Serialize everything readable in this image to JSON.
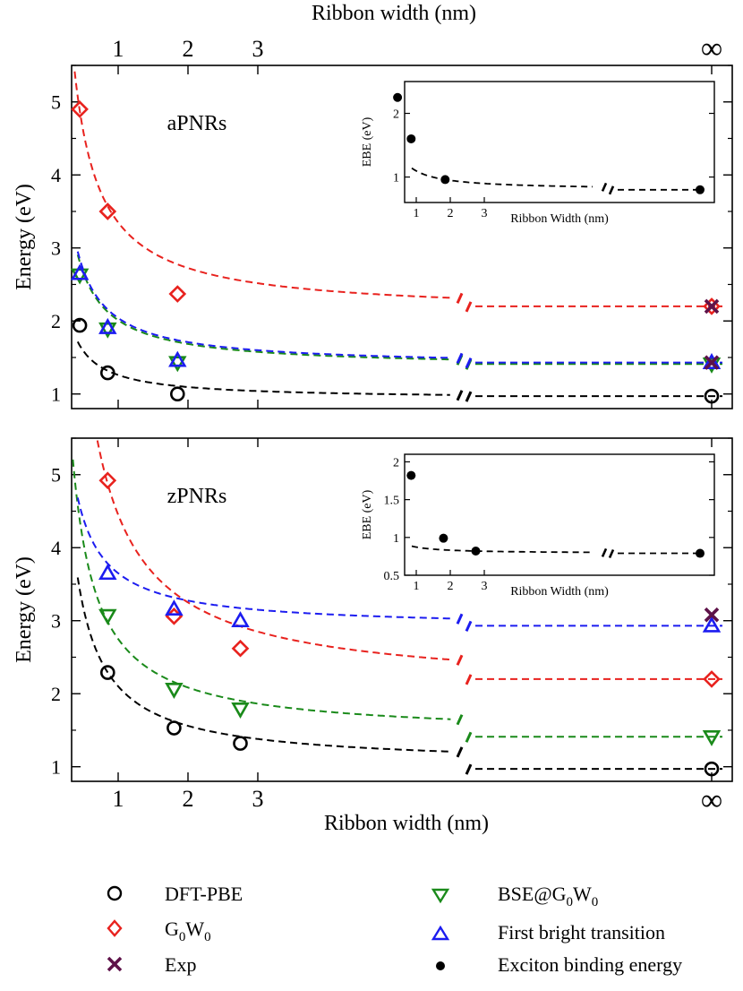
{
  "top_axis_title": "Ribbon width (nm)",
  "bottom_axis_title": "Ribbon width (nm)",
  "x_tick_labels": [
    "1",
    "2",
    "3"
  ],
  "infinity_label": "∞",
  "colors": {
    "dft": "#000000",
    "g0w0": "#e8221e",
    "bse": "#1a8a1a",
    "bright": "#1c1cf0",
    "exp": "#5e1249"
  },
  "legend": {
    "dft": "DFT-PBE",
    "g0w0": "G",
    "g0w0_sub1": "0",
    "g0w0_after": "W",
    "g0w0_sub2": "0",
    "exp": "Exp",
    "bse": "BSE@G",
    "bse_sub1": "0",
    "bse_after": "W",
    "bse_sub2": "0",
    "bright": "First bright transition",
    "ebe": "Exciton binding energy"
  },
  "chart_data": [
    {
      "type": "scatter",
      "panel": "aPNRs",
      "label": "aPNRs",
      "ylabel": "Energy (eV)",
      "xlabel": "Ribbon width (nm)",
      "ylim": [
        0.8,
        5.5
      ],
      "yticks": [
        "1",
        "2",
        "3",
        "4",
        "5"
      ],
      "xticks": [
        "1",
        "2",
        "3",
        "∞"
      ],
      "series": [
        {
          "name": "DFT-PBE",
          "marker": "circle",
          "x": [
            0.45,
            0.85,
            1.85
          ],
          "y": [
            1.94,
            1.29,
            1.0
          ],
          "inf_y": 0.97,
          "fit_a": 0.93,
          "fit_b": 0.33,
          "fit_start": 0.42
        },
        {
          "name": "G0W0",
          "marker": "diamond",
          "x": [
            0.45,
            0.85,
            1.85
          ],
          "y": [
            4.9,
            3.5,
            2.37
          ],
          "inf_y": 2.2,
          "fit_a": 2.1,
          "fit_b": 1.25,
          "fit_start": 0.3
        },
        {
          "name": "BSE@G0W0",
          "marker": "triangle-down",
          "x": [
            0.45,
            0.85,
            1.85
          ],
          "y": [
            2.63,
            1.89,
            1.43
          ],
          "inf_y": 1.41,
          "fit_a": 1.36,
          "fit_b": 0.65,
          "fit_start": 0.42
        },
        {
          "name": "First bright transition",
          "marker": "triangle-up",
          "x": [
            0.45,
            0.85,
            1.85
          ],
          "y": [
            2.65,
            1.91,
            1.46
          ],
          "inf_y": 1.43,
          "fit_a": 1.38,
          "fit_b": 0.66,
          "fit_start": 0.42
        },
        {
          "name": "Exp",
          "marker": "cross",
          "x": [],
          "y": [],
          "inf_points": [
            2.2,
            1.43
          ]
        }
      ],
      "inset": {
        "ylabel": "EBE (eV)",
        "xlabel": "Ribbon Width (nm)",
        "ylim": [
          0.6,
          2.5
        ],
        "yticks": [
          "1",
          "2"
        ],
        "xticks": [
          "1",
          "2",
          "3"
        ],
        "x": [
          0.45,
          0.85,
          1.85
        ],
        "y": [
          2.25,
          1.6,
          0.96
        ],
        "inf_y": 0.8
      }
    },
    {
      "type": "scatter",
      "panel": "zPNRs",
      "label": "zPNRs",
      "ylabel": "Energy (eV)",
      "xlabel": "Ribbon width (nm)",
      "ylim": [
        0.8,
        5.5
      ],
      "yticks": [
        "1",
        "2",
        "3",
        "4",
        "5"
      ],
      "xticks": [
        "1",
        "2",
        "3",
        "∞"
      ],
      "series": [
        {
          "name": "DFT-PBE",
          "marker": "circle",
          "x": [
            0.85,
            1.8,
            2.75
          ],
          "y": [
            2.29,
            1.53,
            1.32
          ],
          "inf_y": 0.97,
          "fit_a": 1.02,
          "fit_b": 1.08,
          "fit_start": 0.42
        },
        {
          "name": "G0W0",
          "marker": "diamond",
          "x": [
            0.85,
            1.8,
            2.75
          ],
          "y": [
            4.92,
            3.06,
            2.62
          ],
          "inf_y": 2.2,
          "fit_a": 2.05,
          "fit_b": 2.4,
          "fit_start": 0.42
        },
        {
          "name": "BSE@G0W0",
          "marker": "triangle-down",
          "x": [
            0.85,
            1.8,
            2.75
          ],
          "y": [
            3.07,
            2.06,
            1.79
          ],
          "inf_y": 1.41,
          "fit_a": 1.42,
          "fit_b": 1.33,
          "fit_start": 0.3
        },
        {
          "name": "First bright transition",
          "marker": "triangle-up",
          "x": [
            0.85,
            1.8,
            2.75
          ],
          "y": [
            3.65,
            3.16,
            3.0
          ],
          "inf_y": 2.93,
          "fit_a": 2.9,
          "fit_b": 0.75,
          "fit_start": 0.42
        },
        {
          "name": "Exp",
          "marker": "cross",
          "x": [],
          "y": [],
          "inf_points": [
            3.08
          ]
        }
      ],
      "inset": {
        "ylabel": "EBE (eV)",
        "xlabel": "Ribbon Width (nm)",
        "ylim": [
          0.5,
          2.1
        ],
        "yticks": [
          "0.5",
          "1",
          "1.5",
          "2"
        ],
        "xticks": [
          "1",
          "2",
          "3"
        ],
        "x": [
          0.85,
          1.8,
          2.75
        ],
        "y": [
          1.82,
          0.99,
          0.82
        ],
        "inf_y": 0.79
      }
    }
  ]
}
